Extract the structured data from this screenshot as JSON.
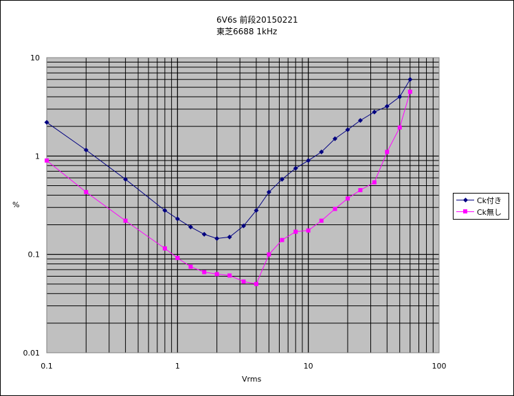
{
  "chart_data": {
    "type": "line",
    "title_lines": [
      "6V6s  前段20150221",
      "東芝6688  1kHz"
    ],
    "xlabel": "Vrms",
    "ylabel": "%",
    "xscale": "log",
    "yscale": "log",
    "xlim": [
      0.1,
      100
    ],
    "ylim": [
      0.01,
      10
    ],
    "x_ticks": [
      "0.1",
      "1",
      "10",
      "100"
    ],
    "y_ticks": [
      "0.01",
      "0.1",
      "1",
      "10"
    ],
    "grid": true,
    "legend_position": "right",
    "series": [
      {
        "name": "Ck付き",
        "color": "#000080",
        "marker": "diamond",
        "x": [
          0.1,
          0.2,
          0.4,
          0.8,
          1.0,
          1.26,
          1.6,
          2.0,
          2.5,
          3.2,
          4.0,
          5.0,
          6.3,
          8.0,
          10,
          12.6,
          16,
          20,
          25,
          32,
          40,
          50,
          60
        ],
        "y": [
          2.2,
          1.15,
          0.58,
          0.28,
          0.23,
          0.19,
          0.16,
          0.145,
          0.15,
          0.195,
          0.28,
          0.43,
          0.58,
          0.75,
          0.9,
          1.1,
          1.5,
          1.85,
          2.3,
          2.8,
          3.2,
          4.0,
          6.0
        ]
      },
      {
        "name": "Ck無し",
        "color": "#ff00ff",
        "marker": "square",
        "x": [
          0.1,
          0.2,
          0.4,
          0.8,
          1.0,
          1.26,
          1.6,
          2.0,
          2.5,
          3.2,
          4.0,
          5.0,
          6.3,
          8.0,
          10,
          12.6,
          16,
          20,
          25,
          32,
          40,
          50,
          60
        ],
        "y": [
          0.9,
          0.43,
          0.22,
          0.115,
          0.092,
          0.075,
          0.066,
          0.063,
          0.061,
          0.053,
          0.05,
          0.1,
          0.14,
          0.17,
          0.175,
          0.22,
          0.29,
          0.37,
          0.45,
          0.54,
          1.1,
          1.95,
          4.5
        ]
      }
    ]
  }
}
